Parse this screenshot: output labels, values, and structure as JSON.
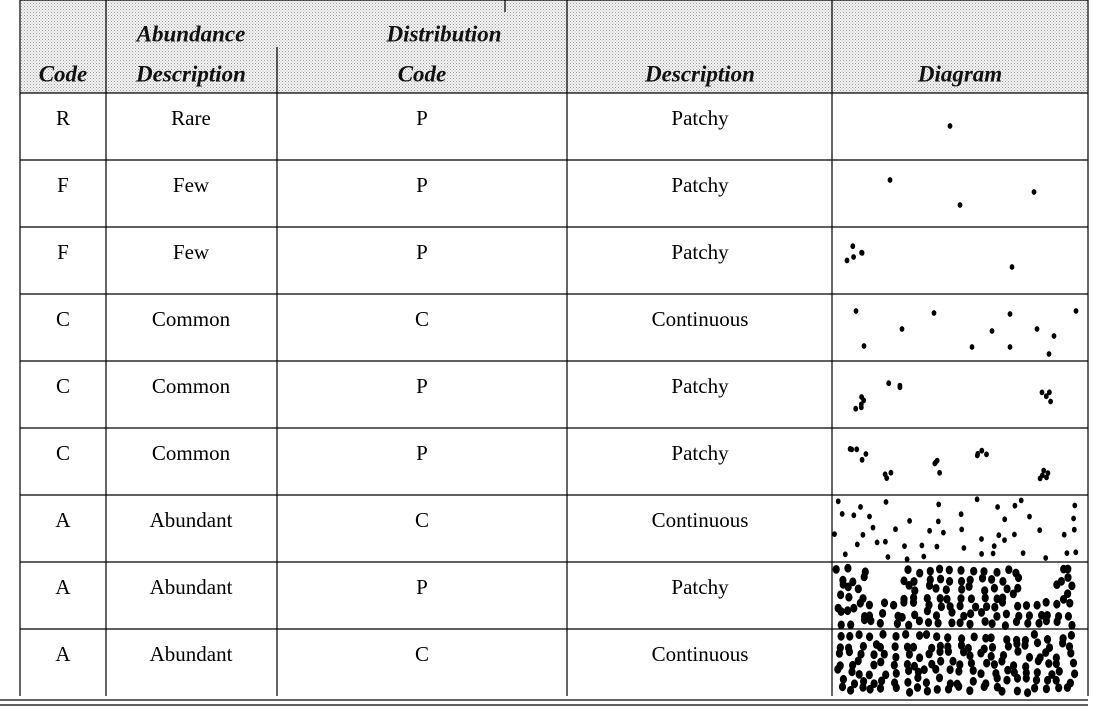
{
  "header": {
    "group_labels": [
      "Abundance",
      "Distribution"
    ],
    "columns": [
      "Code",
      "Description",
      "Code",
      "Description",
      "Diagram"
    ]
  },
  "rows": [
    [
      "R",
      "Rare",
      "P",
      "Patchy"
    ],
    [
      "F",
      "Few",
      "P",
      "Patchy"
    ],
    [
      "F",
      "Few",
      "P",
      "Patchy"
    ],
    [
      "C",
      "Common",
      "C",
      "Continuous"
    ],
    [
      "C",
      "Common",
      "P",
      "Patchy"
    ],
    [
      "C",
      "Common",
      "P",
      "Patchy"
    ],
    [
      "A",
      "Abundant",
      "C",
      "Continuous"
    ],
    [
      "A",
      "Abundant",
      "P",
      "Patchy"
    ],
    [
      "A",
      "Abundant",
      "C",
      "Continuous"
    ]
  ]
}
